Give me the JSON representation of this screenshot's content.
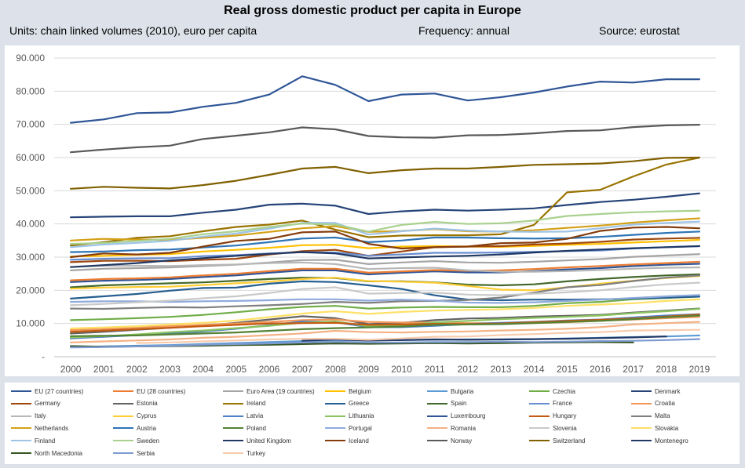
{
  "title": "Real gross domestic product per capita in Europe",
  "subtitle": {
    "units": "Units: chain linked volumes (2010), euro per capita",
    "frequency": "Frequency: annual",
    "source": "Source: eurostat"
  },
  "chart_data": {
    "type": "line",
    "title": "Real gross domestic product per capita in Europe",
    "xlabel": "",
    "ylabel": "",
    "ylim": [
      0,
      90000
    ],
    "y_ticks": [
      0,
      10000,
      20000,
      30000,
      40000,
      50000,
      60000,
      70000,
      80000,
      90000
    ],
    "y_tick_labels": [
      "-",
      "10.000",
      "20.000",
      "30.000",
      "40.000",
      "50.000",
      "60.000",
      "70.000",
      "80.000",
      "90.000"
    ],
    "grid": true,
    "legend_position": "bottom",
    "x": [
      "2000",
      "2001",
      "2002",
      "2003",
      "2004",
      "2005",
      "2006",
      "2007",
      "2008",
      "2009",
      "2010",
      "2011",
      "2012",
      "2013",
      "2014",
      "2015",
      "2016",
      "2017",
      "2018",
      "2019"
    ],
    "series": [
      {
        "name": "EU (27 countries)",
        "color": "#2f5597",
        "values": [
          22500,
          22900,
          23100,
          23400,
          24000,
          24500,
          25300,
          26000,
          26000,
          24800,
          25300,
          25700,
          25400,
          25400,
          25800,
          26300,
          26700,
          27300,
          27700,
          28000
        ]
      },
      {
        "name": "EU (28 countries)",
        "color": "#ed7d31",
        "values": [
          23000,
          23400,
          23600,
          23900,
          24500,
          25000,
          25800,
          26500,
          26500,
          25300,
          25700,
          26100,
          25900,
          26000,
          26400,
          26900,
          27300,
          27800,
          28200,
          28600
        ]
      },
      {
        "name": "Euro Area (19 countries)",
        "color": "#a5a5a5",
        "values": [
          26000,
          26500,
          26700,
          26900,
          27300,
          27700,
          28400,
          29100,
          29200,
          27900,
          28400,
          28800,
          28400,
          28300,
          28600,
          29000,
          29400,
          30100,
          30500,
          30900
        ]
      },
      {
        "name": "Belgium",
        "color": "#ffc000",
        "values": [
          30200,
          30400,
          30700,
          30900,
          31700,
          32200,
          32800,
          33600,
          33700,
          32700,
          33200,
          33300,
          33200,
          33100,
          33400,
          33700,
          34000,
          34400,
          34800,
          35200
        ]
      },
      {
        "name": "Bulgaria",
        "color": "#5b9bd5",
        "values": [
          2900,
          3100,
          3300,
          3500,
          3800,
          4100,
          4400,
          4700,
          5000,
          4900,
          5000,
          5100,
          5200,
          5200,
          5300,
          5500,
          5700,
          5900,
          6100,
          6400
        ]
      },
      {
        "name": "Czechia",
        "color": "#70ad47",
        "values": [
          11000,
          11300,
          11600,
          12000,
          12600,
          13400,
          14300,
          15000,
          15300,
          14500,
          14800,
          15000,
          14900,
          14900,
          15300,
          16100,
          16500,
          17300,
          17700,
          18100
        ]
      },
      {
        "name": "Denmark",
        "color": "#264478",
        "values": [
          42000,
          42200,
          42300,
          42300,
          43400,
          44300,
          45800,
          46100,
          45500,
          43000,
          43800,
          44300,
          44000,
          44300,
          44700,
          45700,
          46600,
          47300,
          48200,
          49200
        ]
      },
      {
        "name": "Germany",
        "color": "#9e480e",
        "values": [
          28500,
          28900,
          28900,
          28800,
          29200,
          29500,
          30800,
          31800,
          32200,
          30400,
          31700,
          33000,
          33200,
          33300,
          33800,
          34100,
          34600,
          35300,
          35600,
          35800
        ]
      },
      {
        "name": "Estonia",
        "color": "#636363",
        "values": [
          7000,
          7500,
          8100,
          8700,
          9300,
          10200,
          11200,
          12200,
          11600,
          9800,
          10200,
          11000,
          11500,
          11700,
          12100,
          12300,
          12600,
          13300,
          13900,
          14500
        ]
      },
      {
        "name": "Ireland",
        "color": "#997300",
        "values": [
          33500,
          34500,
          35800,
          36300,
          37800,
          39100,
          39800,
          41000,
          38300,
          36000,
          36500,
          36600,
          36600,
          36900,
          39700,
          49500,
          50300,
          54300,
          57900,
          60000
        ]
      },
      {
        "name": "Greece",
        "color": "#255e91",
        "values": [
          17500,
          18200,
          18900,
          19900,
          20700,
          20800,
          22000,
          22700,
          22500,
          21500,
          20400,
          18500,
          17200,
          17000,
          17200,
          17200,
          17300,
          17500,
          17800,
          18100
        ]
      },
      {
        "name": "Spain",
        "color": "#43682b",
        "values": [
          20900,
          21500,
          21800,
          22100,
          22400,
          22900,
          23400,
          23800,
          23700,
          22700,
          22700,
          22400,
          21700,
          21500,
          21800,
          22700,
          23400,
          24000,
          24500,
          24800
        ]
      },
      {
        "name": "France",
        "color": "#698ed0",
        "values": [
          29200,
          29500,
          29600,
          29700,
          30300,
          30600,
          31100,
          31500,
          31400,
          30400,
          30800,
          31300,
          31300,
          31400,
          31600,
          31800,
          32000,
          32600,
          33000,
          33300
        ]
      },
      {
        "name": "Croatia",
        "color": "#f1975a",
        "values": [
          8000,
          8400,
          8800,
          9200,
          9600,
          10000,
          10500,
          11000,
          11200,
          10500,
          10300,
          10300,
          10100,
          10100,
          10100,
          10400,
          10800,
          11200,
          11600,
          12000
        ]
      },
      {
        "name": "Italy",
        "color": "#b7b7b7",
        "values": [
          27000,
          27400,
          27400,
          27300,
          27600,
          27800,
          28200,
          28400,
          27900,
          26400,
          26700,
          26800,
          26000,
          25600,
          25600,
          25800,
          26100,
          26500,
          26800,
          26900
        ]
      },
      {
        "name": "Cyprus",
        "color": "#ffcd33",
        "values": [
          20500,
          20800,
          21000,
          21100,
          21600,
          22100,
          22600,
          23400,
          23800,
          22800,
          22600,
          22300,
          21300,
          20200,
          20000,
          20900,
          22000,
          22900,
          23700,
          24300
        ]
      },
      {
        "name": "Latvia",
        "color": "#4e7fc6",
        "values": [
          5500,
          6000,
          6500,
          7000,
          7600,
          8400,
          9500,
          10600,
          10400,
          8900,
          8900,
          9300,
          9800,
          10200,
          10500,
          10900,
          11200,
          11800,
          12400,
          12800
        ]
      },
      {
        "name": "Lithuania",
        "color": "#8ac35f",
        "values": [
          5800,
          6200,
          6700,
          7400,
          7900,
          8600,
          9300,
          10200,
          10600,
          9200,
          9500,
          10300,
          10800,
          11300,
          11700,
          12000,
          12400,
          13100,
          13700,
          14400
        ]
      },
      {
        "name": "Luxembourg",
        "color": "#2f5597",
        "values": [
          70500,
          71500,
          73400,
          73600,
          75300,
          76500,
          79000,
          84500,
          81900,
          77000,
          79000,
          79300,
          77200,
          78200,
          79600,
          81400,
          82900,
          82600,
          83600,
          83600
        ]
      },
      {
        "name": "Hungary",
        "color": "#c55a11",
        "values": [
          7500,
          7900,
          8300,
          8700,
          9200,
          9600,
          10000,
          10100,
          10200,
          9600,
          9700,
          9900,
          9800,
          10000,
          10400,
          10800,
          11100,
          11500,
          12100,
          12700
        ]
      },
      {
        "name": "Malta",
        "color": "#7f7f7f",
        "values": [
          14500,
          14400,
          14700,
          14900,
          14800,
          15200,
          15500,
          15900,
          16500,
          16200,
          16700,
          16800,
          17100,
          17800,
          19300,
          20900,
          21600,
          22800,
          23800,
          24500
        ]
      },
      {
        "name": "Netherlands",
        "color": "#d4a017",
        "values": [
          35000,
          35500,
          35300,
          35200,
          35800,
          36500,
          37600,
          38700,
          39300,
          37600,
          37900,
          38400,
          37800,
          37700,
          38100,
          38800,
          39500,
          40400,
          41100,
          41700
        ]
      },
      {
        "name": "Austria",
        "color": "#2e75b6",
        "values": [
          31500,
          31700,
          32100,
          32300,
          32900,
          33500,
          34500,
          35600,
          35900,
          34500,
          35000,
          35900,
          35900,
          35700,
          35600,
          35700,
          36100,
          36700,
          37300,
          37700
        ]
      },
      {
        "name": "Poland",
        "color": "#548235",
        "values": [
          6200,
          6300,
          6400,
          6700,
          7000,
          7300,
          7800,
          8300,
          8600,
          8800,
          9100,
          9600,
          9700,
          9800,
          10100,
          10500,
          10800,
          11300,
          11900,
          12400
        ]
      },
      {
        "name": "Portugal",
        "color": "#8faadc",
        "values": [
          16500,
          16700,
          16700,
          16500,
          16700,
          16800,
          17000,
          17300,
          17300,
          16900,
          17200,
          16900,
          16300,
          16200,
          16400,
          16800,
          17200,
          17700,
          18200,
          18600
        ]
      },
      {
        "name": "Romania",
        "color": "#f4b183",
        "values": [
          4300,
          4600,
          4900,
          5200,
          5700,
          6000,
          6500,
          7000,
          7800,
          7400,
          7300,
          7500,
          7600,
          7900,
          8100,
          8400,
          8900,
          9700,
          10100,
          10500
        ]
      },
      {
        "name": "Slovenia",
        "color": "#c9c9c9",
        "values": [
          15500,
          15900,
          16400,
          16900,
          17600,
          18200,
          19200,
          20400,
          20900,
          19000,
          19200,
          19300,
          18700,
          18500,
          19000,
          19400,
          20000,
          21000,
          21800,
          22300
        ]
      },
      {
        "name": "Slovakia",
        "color": "#ffe066",
        "values": [
          8500,
          8800,
          9200,
          9700,
          10200,
          10900,
          11900,
          13000,
          13700,
          12900,
          13500,
          13900,
          14100,
          14300,
          14700,
          15300,
          15700,
          16100,
          16800,
          17300
        ]
      },
      {
        "name": "Finland",
        "color": "#9dc3e6",
        "values": [
          33000,
          33800,
          34300,
          34900,
          36200,
          37100,
          38600,
          40300,
          40300,
          36800,
          37800,
          38600,
          38000,
          37700,
          37600,
          37700,
          38700,
          39800,
          40300,
          40700
        ]
      },
      {
        "name": "Sweden",
        "color": "#a9d18e",
        "values": [
          34000,
          34300,
          34900,
          35500,
          36900,
          37800,
          39100,
          40100,
          39800,
          37700,
          39700,
          40600,
          40000,
          40200,
          41000,
          42400,
          43000,
          43500,
          43800,
          44000
        ]
      },
      {
        "name": "United Kingdom",
        "color": "#1f3864",
        "values": [
          27000,
          27600,
          28200,
          29000,
          29700,
          30400,
          31000,
          31500,
          31100,
          29600,
          29900,
          30200,
          30400,
          30800,
          31400,
          31900,
          32300,
          32700,
          33000,
          33300
        ]
      },
      {
        "name": "Iceland",
        "color": "#843c0c",
        "values": [
          30000,
          31100,
          30800,
          31300,
          33200,
          34900,
          35500,
          37500,
          37700,
          34000,
          32600,
          33000,
          33200,
          34200,
          34400,
          35500,
          37900,
          38900,
          39100,
          38700
        ]
      },
      {
        "name": "Norway",
        "color": "#595959",
        "values": [
          61600,
          62400,
          63100,
          63600,
          65600,
          66600,
          67600,
          69100,
          68500,
          66500,
          66100,
          66000,
          66700,
          66800,
          67300,
          68000,
          68200,
          69200,
          69700,
          69900
        ]
      },
      {
        "name": "Switzerland",
        "color": "#806000",
        "values": [
          50600,
          51200,
          50900,
          50700,
          51700,
          53000,
          54800,
          56700,
          57200,
          55300,
          56200,
          56700,
          56700,
          57200,
          57800,
          58000,
          58200,
          58900,
          59900,
          60000
        ]
      },
      {
        "name": "Montenegro",
        "color": "#203864",
        "values": [
          null,
          null,
          null,
          null,
          null,
          null,
          null,
          4800,
          5200,
          4900,
          5000,
          5200,
          5100,
          5200,
          5300,
          5400,
          5600,
          5800,
          6100,
          null
        ]
      },
      {
        "name": "North Macedonia",
        "color": "#375623",
        "values": [
          3200,
          3000,
          3100,
          3200,
          3300,
          3500,
          3600,
          3800,
          4000,
          3900,
          4000,
          4100,
          4000,
          4100,
          4200,
          4300,
          4400,
          4300,
          null,
          null
        ]
      },
      {
        "name": "Serbia",
        "color": "#7e9bd2",
        "values": [
          2800,
          2900,
          3100,
          3300,
          3600,
          3800,
          4000,
          4300,
          4500,
          4300,
          4300,
          4400,
          4400,
          4500,
          4400,
          4500,
          4700,
          4800,
          5000,
          5300
        ]
      },
      {
        "name": "Turkey",
        "color": "#f8cbad",
        "values": [
          null,
          null,
          4100,
          4300,
          4600,
          4900,
          5200,
          5400,
          5400,
          5100,
          5500,
          6000,
          6100,
          6500,
          6800,
          7200,
          7400,
          7900,
          8000,
          8100
        ]
      }
    ]
  }
}
